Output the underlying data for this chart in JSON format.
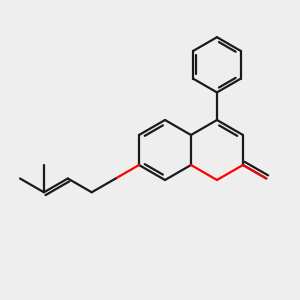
{
  "bg_color": "#eeeeee",
  "bond_color": "#1a1a1a",
  "oxygen_color": "#ff0000",
  "lw": 1.6,
  "dbo": 0.12,
  "BL": 1.0,
  "xlim": [
    0,
    10
  ],
  "ylim": [
    0,
    10
  ]
}
